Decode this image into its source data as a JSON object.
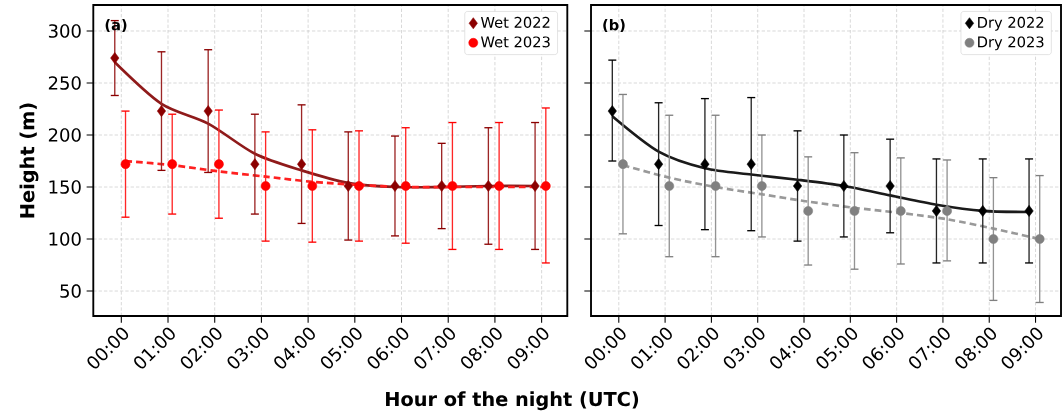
{
  "chart_data": [
    {
      "type": "scatter",
      "xlabel": "Hour of the night (UTC)",
      "ylabel": "Height (m)",
      "annotations": [
        "(a)"
      ],
      "grid": true,
      "legend": "top right",
      "xlim": [
        -0.6,
        9.55
      ],
      "ylim": [
        26,
        325
      ],
      "xticks": [
        {
          "value": 0,
          "label": "00:00"
        },
        {
          "value": 1,
          "label": "01:00"
        },
        {
          "value": 2,
          "label": "02:00"
        },
        {
          "value": 3,
          "label": "03:00"
        },
        {
          "value": 4,
          "label": "04:00"
        },
        {
          "value": 5,
          "label": "05:00"
        },
        {
          "value": 6,
          "label": "06:00"
        },
        {
          "value": 7,
          "label": "07:00"
        },
        {
          "value": 8,
          "label": "08:00"
        },
        {
          "value": 9,
          "label": "09:00"
        }
      ],
      "yticks": [
        50,
        100,
        150,
        200,
        250,
        300
      ],
      "series": [
        {
          "type": "line",
          "color": "#8f1a1a",
          "line_style": "solid",
          "marker": "none",
          "x": [
            -0.14,
            0.86,
            1.86,
            2.86,
            3.86,
            4.86,
            5.86,
            6.86,
            7.86,
            8.86
          ],
          "values": [
            270,
            230,
            211,
            182,
            166,
            154,
            150,
            150,
            151,
            151
          ]
        },
        {
          "type": "line",
          "color": "#ff2020",
          "line_style": "dashed",
          "marker": "none",
          "x": [
            0.09,
            1.09,
            2.09,
            3.09,
            4.09,
            5.09,
            6.09,
            7.09,
            8.09,
            9.09
          ],
          "values": [
            175,
            171,
            165,
            160,
            155,
            152,
            150,
            150,
            150,
            150
          ]
        },
        {
          "name": "Wet 2022",
          "color": "#8b0000",
          "marker": "diamond",
          "x": [
            -0.14,
            0.86,
            1.86,
            2.86,
            3.86,
            4.86,
            5.86,
            6.86,
            7.86,
            8.86
          ],
          "values": [
            274,
            223,
            223,
            172,
            172,
            151,
            151,
            151,
            151,
            151
          ],
          "errors": [
            [
              238,
              310
            ],
            [
              166,
              280
            ],
            [
              164,
              282
            ],
            [
              124,
              220
            ],
            [
              115,
              229
            ],
            [
              99,
              203
            ],
            [
              103,
              199
            ],
            [
              110,
              192
            ],
            [
              95,
              207
            ],
            [
              90,
              212
            ]
          ]
        },
        {
          "name": "Wet 2023",
          "color": "#ff0000",
          "marker": "circle",
          "x": [
            0.09,
            1.09,
            2.09,
            3.09,
            4.09,
            5.09,
            6.09,
            7.09,
            8.09,
            9.09
          ],
          "values": [
            172,
            172,
            172,
            151,
            151,
            151,
            151,
            151,
            151,
            151
          ],
          "errors": [
            [
              121,
              223
            ],
            [
              124,
              220
            ],
            [
              120,
              224
            ],
            [
              98,
              203
            ],
            [
              97,
              205
            ],
            [
              98,
              204
            ],
            [
              96,
              207
            ],
            [
              90,
              212
            ],
            [
              90,
              212
            ],
            [
              77,
              226
            ]
          ]
        }
      ]
    },
    {
      "type": "scatter",
      "annotations": [
        "(b)"
      ],
      "grid": true,
      "legend": "top right",
      "tick_labels": "x",
      "xlim": [
        -0.6,
        9.55
      ],
      "ylim": [
        26,
        325
      ],
      "xticks": [
        {
          "value": 0,
          "label": "00:00"
        },
        {
          "value": 1,
          "label": "01:00"
        },
        {
          "value": 2,
          "label": "02:00"
        },
        {
          "value": 3,
          "label": "03:00"
        },
        {
          "value": 4,
          "label": "04:00"
        },
        {
          "value": 5,
          "label": "05:00"
        },
        {
          "value": 6,
          "label": "06:00"
        },
        {
          "value": 7,
          "label": "07:00"
        },
        {
          "value": 8,
          "label": "08:00"
        },
        {
          "value": 9,
          "label": "09:00"
        }
      ],
      "yticks": [
        50,
        100,
        150,
        200,
        250,
        300
      ],
      "series": [
        {
          "type": "line",
          "color": "#1a1a1a",
          "line_style": "solid",
          "marker": "none",
          "x": [
            -0.14,
            0.86,
            1.86,
            2.86,
            3.86,
            4.86,
            5.86,
            6.86,
            7.86,
            8.86
          ],
          "values": [
            218,
            184,
            168,
            162,
            157,
            151,
            142,
            133,
            127,
            126
          ]
        },
        {
          "type": "line",
          "color": "#999999",
          "line_style": "dashed",
          "marker": "none",
          "x": [
            0.09,
            1.09,
            2.09,
            3.09,
            4.09,
            5.09,
            6.09,
            7.09,
            8.09,
            9.09
          ],
          "values": [
            171,
            159,
            150,
            143,
            136,
            130,
            125,
            119,
            110,
            100
          ]
        },
        {
          "name": "Dry 2022",
          "color": "#000000",
          "marker": "diamond",
          "x": [
            -0.14,
            0.86,
            1.86,
            2.86,
            3.86,
            4.86,
            5.86,
            6.86,
            7.86,
            8.86
          ],
          "values": [
            223,
            172,
            172,
            172,
            151,
            151,
            151,
            127,
            127,
            127
          ],
          "errors": [
            [
              175,
              272
            ],
            [
              113,
              231
            ],
            [
              109,
              235
            ],
            [
              108,
              236
            ],
            [
              98,
              204
            ],
            [
              102,
              200
            ],
            [
              106,
              196
            ],
            [
              77,
              177
            ],
            [
              77,
              177
            ],
            [
              77,
              177
            ]
          ]
        },
        {
          "name": "Dry 2023",
          "color": "#808080",
          "marker": "circle",
          "x": [
            0.09,
            1.09,
            2.09,
            3.09,
            4.09,
            5.09,
            6.09,
            7.09,
            8.09,
            9.09
          ],
          "values": [
            172,
            151,
            151,
            151,
            127,
            127,
            127,
            127,
            100,
            100
          ],
          "errors": [
            [
              105,
              239
            ],
            [
              83,
              219
            ],
            [
              83,
              219
            ],
            [
              102,
              200
            ],
            [
              75,
              179
            ],
            [
              71,
              183
            ],
            [
              76,
              178
            ],
            [
              79,
              176
            ],
            [
              41,
              159
            ],
            [
              39,
              161
            ]
          ]
        }
      ]
    }
  ]
}
